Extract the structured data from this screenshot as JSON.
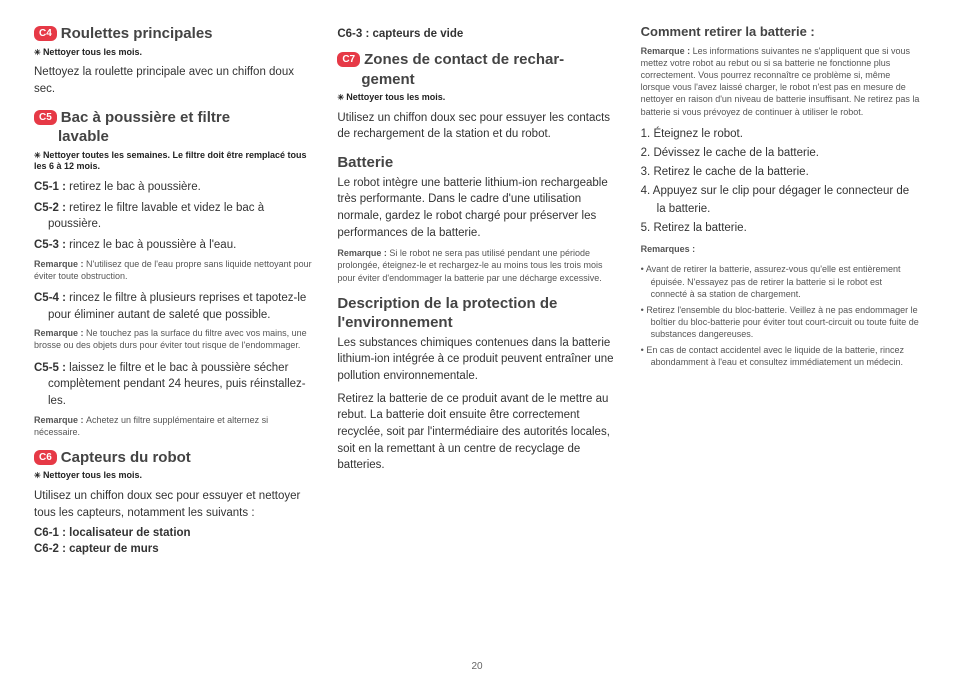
{
  "pageNumber": "20",
  "col1": {
    "s1": {
      "badge": "C4",
      "title": "Roulettes principales",
      "star": "Nettoyer tous les mois.",
      "body": "Nettoyez la roulette principale avec un chiffon doux sec."
    },
    "s2": {
      "badge": "C5",
      "title": "Bac à poussière et filtre lavable",
      "star": "Nettoyer toutes les semaines. Le filtre doit être remplacé tous les 6 à 12 mois.",
      "steps": [
        {
          "n": "C5-1 :",
          "t": "retirez le bac à poussière."
        },
        {
          "n": "C5-2 :",
          "t": "retirez le filtre lavable et videz le bac à poussière."
        },
        {
          "n": "C5-3 :",
          "t": "rincez le bac à poussière à l'eau."
        }
      ],
      "note1": "N'utilisez que de l'eau propre sans liquide nettoyant pour éviter toute obstruction.",
      "step4": {
        "n": "C5-4 :",
        "t": "rincez le filtre à plusieurs reprises et tapotez-le pour éliminer autant de saleté que possible."
      },
      "note2": "Ne touchez pas la surface du filtre avec vos mains, une brosse ou des objets durs pour éviter tout risque de l'endommager.",
      "step5": {
        "n": "C5-5 :",
        "t": "laissez le filtre et le bac à poussière sécher complètement pendant 24 heures, puis réinstallez-les."
      },
      "note3": "Achetez un filtre supplémentaire et alternez si nécessaire."
    },
    "s3": {
      "badge": "C6",
      "title": "Capteurs du robot",
      "star": "Nettoyer tous les mois.",
      "body": "Utilisez un chiffon doux sec pour essuyer et nettoyer tous les capteurs, notamment les suivants :",
      "sensors": [
        "C6-1 : localisateur de station",
        "C6-2 : capteur de murs"
      ]
    }
  },
  "col2": {
    "sensor3": "C6-3 : capteurs de vide",
    "s1": {
      "badge": "C7",
      "title": "Zones de contact de rechargement",
      "star": "Nettoyer tous les mois.",
      "body": "Utilisez un chiffon doux sec pour essuyer les contacts de rechargement de la station et du robot."
    },
    "s2": {
      "title": "Batterie",
      "body": "Le robot intègre une batterie lithium-ion rechargeable très performante. Dans le cadre d'une utilisation normale, gardez le robot chargé pour préserver les performances de la batterie.",
      "note": "Si le robot ne sera pas utilisé pendant une période prolongée, éteignez-le et rechargez-le au moins tous les trois mois pour éviter d'endommager la batterie par une décharge excessive."
    },
    "s3": {
      "title": "Description de la protection de l'environnement",
      "p1": "Les substances chimiques contenues dans la batterie lithium-ion intégrée à ce produit peuvent entraîner une pollution environnementale.",
      "p2": "Retirez la batterie de ce produit avant de le mettre au rebut. La batterie doit ensuite être correctement recyclée, soit par l'intermédiaire des autorités locales, soit en la remettant à un centre de recyclage de batteries."
    }
  },
  "col3": {
    "title": "Comment retirer la batterie :",
    "note1": "Les informations suivantes ne s'appliquent que si vous mettez votre robot au rebut ou si sa batterie ne fonctionne plus correctement. Vous pourrez reconnaître ce problème si, même lorsque vous l'avez laissé charger, le robot n'est pas en mesure de nettoyer en raison d'un niveau de batterie insuffisant. Ne retirez pas la batterie si vous prévoyez de continuer à utiliser le robot.",
    "steps": [
      "1. Éteignez le robot.",
      "2. Dévissez le cache de la batterie.",
      "3. Retirez le cache de la batterie.",
      "4. Appuyez sur le clip pour dégager le connecteur de la batterie.",
      "5. Retirez la batterie."
    ],
    "remarksLabel": "Remarques :",
    "remarks": [
      "Avant de retirer la batterie, assurez-vous qu'elle est entièrement épuisée. N'essayez pas de retirer la batterie si le robot est connecté à sa station de chargement.",
      "Retirez l'ensemble du bloc-batterie. Veillez à ne pas endommager le boîtier du bloc-batterie pour éviter tout court-circuit ou toute fuite de substances dangereuses.",
      "En cas de contact accidentel avec le liquide de la batterie, rincez abondamment à l'eau et consultez immédiatement un médecin."
    ]
  },
  "labels": {
    "remarque": "Remarque : "
  }
}
